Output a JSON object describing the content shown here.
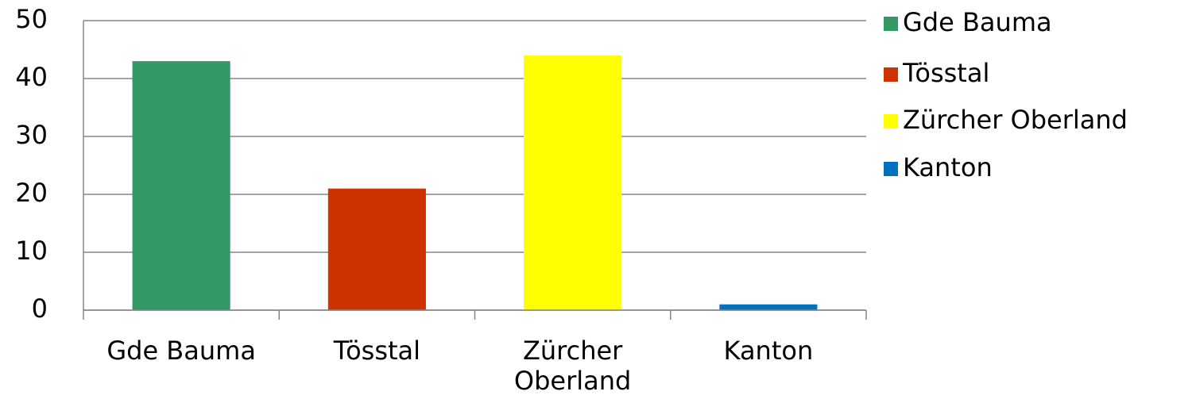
{
  "chart_data": {
    "type": "bar",
    "categories": [
      "Gde Bauma",
      "Tösstal",
      "Zürcher Oberland",
      "Kanton"
    ],
    "values": [
      43,
      21,
      44,
      1
    ],
    "colors": [
      "#339966",
      "#cc3300",
      "#ffff00",
      "#0070c0"
    ],
    "ylim": [
      0,
      50
    ],
    "yticks": [
      0,
      10,
      20,
      30,
      40,
      50
    ],
    "grid": true,
    "legend": "right"
  }
}
